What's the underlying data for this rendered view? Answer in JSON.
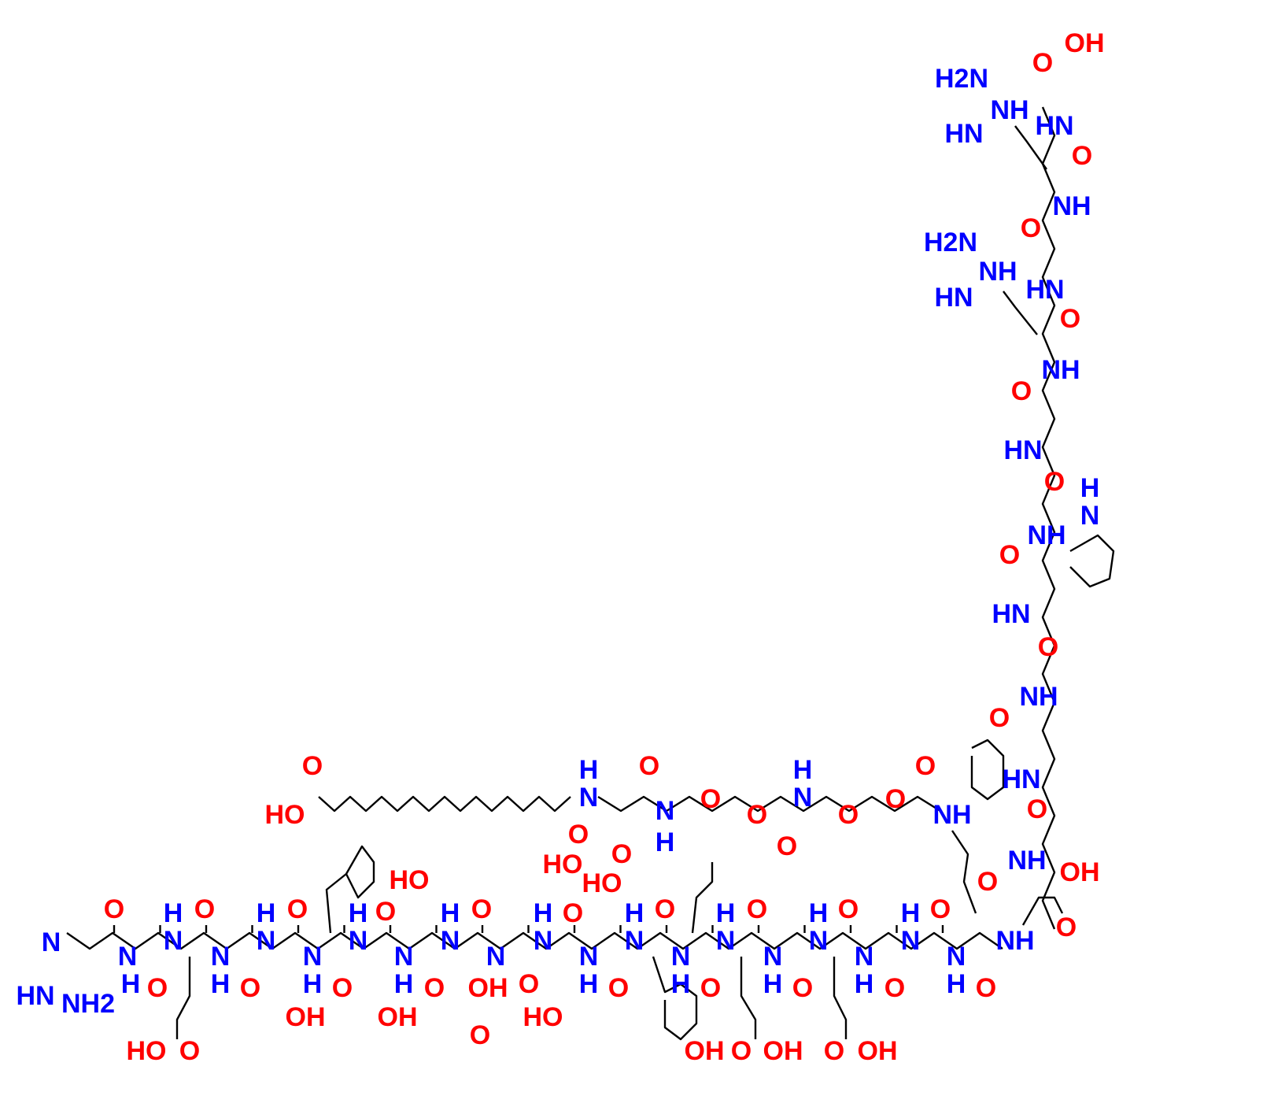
{
  "diagram": {
    "type": "chemical-structure",
    "colors": {
      "oxygen": "#ff0000",
      "nitrogen": "#0000ff",
      "bond": "#000000"
    },
    "labels": [
      "OH",
      "O",
      "H2N",
      "NH",
      "HN",
      "HN",
      "O",
      "NH",
      "O",
      "H2N",
      "NH",
      "HN",
      "HN",
      "O",
      "NH",
      "O",
      "HN",
      "O",
      "H",
      "N",
      "NH",
      "O",
      "HN",
      "O",
      "NH",
      "O",
      "HN",
      "O",
      "NH",
      "O",
      "OH",
      "O",
      "NH",
      "O",
      "HO",
      "H",
      "N",
      "O",
      "N",
      "H",
      "O",
      "O",
      "H",
      "N",
      "O",
      "O",
      "O",
      "O",
      "NH",
      "O",
      "HO",
      "O",
      "N",
      "HN",
      "NH2",
      "O",
      "N",
      "H",
      "O",
      "H",
      "N",
      "O",
      "HO",
      "O",
      "N",
      "H",
      "O",
      "H",
      "N",
      "O",
      "OH",
      "N",
      "H",
      "O",
      "H",
      "N",
      "O",
      "HO",
      "OH",
      "N",
      "H",
      "O",
      "H",
      "N",
      "O",
      "N",
      "OH",
      "O",
      "O",
      "HO",
      "H",
      "N",
      "HO",
      "O",
      "N",
      "H",
      "O",
      "H",
      "N",
      "O",
      "N",
      "H",
      "O",
      "H",
      "N",
      "O",
      "N",
      "H",
      "O",
      "H",
      "N",
      "O",
      "N",
      "H",
      "O",
      "H",
      "N",
      "O",
      "N",
      "H",
      "O",
      "OH",
      "O",
      "OH",
      "O",
      "OH"
    ]
  }
}
